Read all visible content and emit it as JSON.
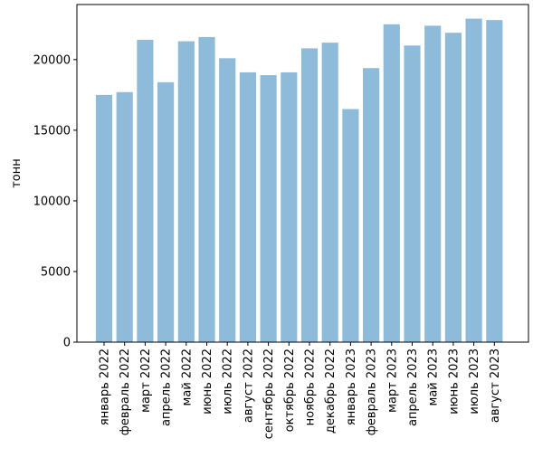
{
  "chart_data": {
    "type": "bar",
    "title": "",
    "xlabel": "",
    "ylabel": "тонн",
    "ylim": [
      0,
      23900
    ],
    "yticks": [
      0,
      5000,
      10000,
      15000,
      20000
    ],
    "grid": false,
    "bar_color": "#8fbbda",
    "categories": [
      "январь 2022",
      "февраль 2022",
      "март 2022",
      "апрель 2022",
      "май 2022",
      "июнь 2022",
      "июль 2022",
      "август 2022",
      "сентябрь 2022",
      "октябрь 2022",
      "ноябрь 2022",
      "декабрь 2022",
      "январь 2023",
      "февраль 2023",
      "март 2023",
      "апрель 2023",
      "май 2023",
      "июнь 2023",
      "июль 2023",
      "август 2023"
    ],
    "values": [
      17500,
      17700,
      21400,
      18400,
      21300,
      21600,
      20100,
      19100,
      18900,
      19100,
      20800,
      21200,
      16500,
      19400,
      22500,
      21000,
      22400,
      21900,
      22900,
      22800
    ]
  }
}
